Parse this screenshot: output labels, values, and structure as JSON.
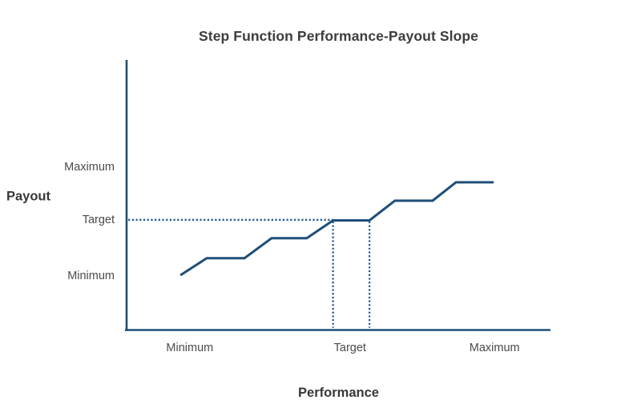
{
  "title": "Step Function Performance-Payout Slope",
  "chart_data": {
    "type": "line",
    "subtype": "step-function",
    "title": "Step Function Performance-Payout Slope",
    "xlabel": "Performance",
    "ylabel": "Payout",
    "grid": false,
    "legend": false,
    "axis_color": "#1F4E79",
    "x_ticks": [
      {
        "label": "Minimum",
        "pos": 0.149
      },
      {
        "label": "Target",
        "pos": 0.527
      },
      {
        "label": "Maximum",
        "pos": 0.868
      }
    ],
    "y_ticks": [
      {
        "label": "Minimum",
        "pos": 0.201
      },
      {
        "label": "Target",
        "pos": 0.408
      },
      {
        "label": "Maximum",
        "pos": 0.604
      }
    ],
    "series": [
      {
        "name": "payout-step-line",
        "color": "#1F4E79",
        "points": [
          [
            0.127,
            0.203
          ],
          [
            0.189,
            0.266
          ],
          [
            0.278,
            0.266
          ],
          [
            0.342,
            0.34
          ],
          [
            0.425,
            0.34
          ],
          [
            0.487,
            0.406
          ],
          [
            0.573,
            0.406
          ],
          [
            0.633,
            0.479
          ],
          [
            0.722,
            0.479
          ],
          [
            0.777,
            0.547
          ],
          [
            0.866,
            0.547
          ]
        ]
      }
    ],
    "reference_lines": [
      {
        "name": "target-payout-hline",
        "style": "dotted",
        "color": "#205A96",
        "from": [
          0.004,
          0.408
        ],
        "to": [
          0.487,
          0.408
        ]
      },
      {
        "name": "target-performance-vline-left",
        "style": "dotted",
        "color": "#205A96",
        "from": [
          0.487,
          0.402
        ],
        "to": [
          0.487,
          0.008
        ]
      },
      {
        "name": "target-performance-vline-right",
        "style": "dotted",
        "color": "#205A96",
        "from": [
          0.573,
          0.402
        ],
        "to": [
          0.573,
          0.008
        ]
      }
    ]
  }
}
